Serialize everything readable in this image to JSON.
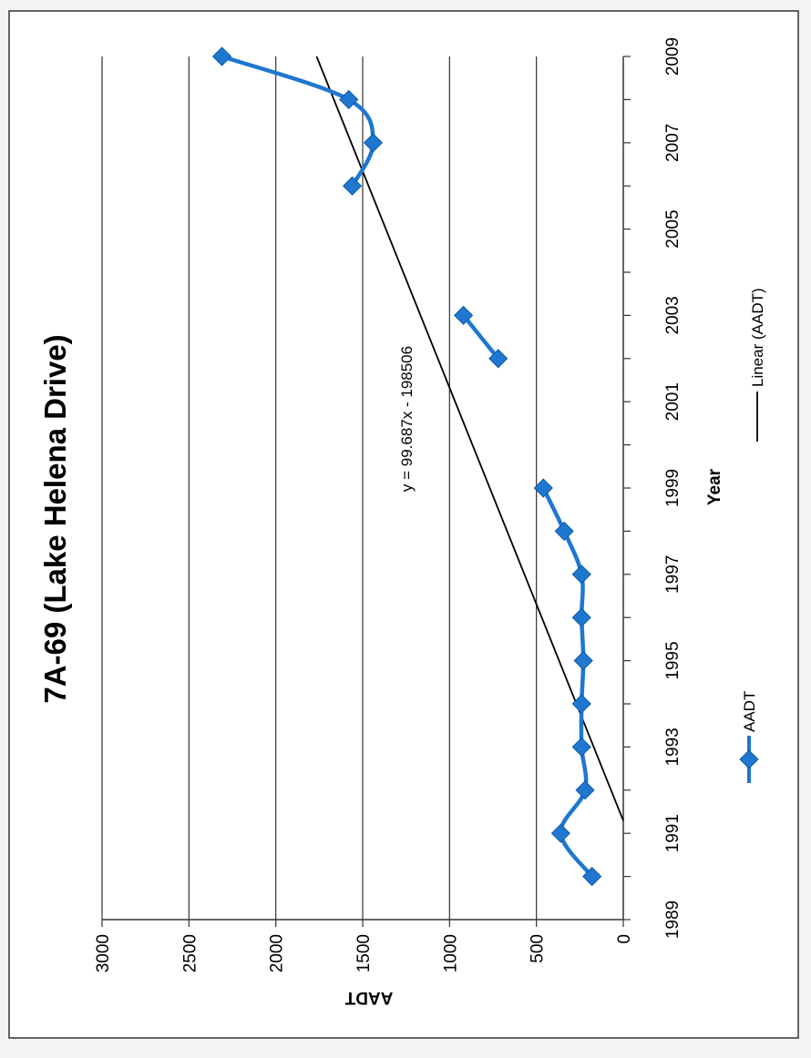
{
  "chart_data": {
    "type": "line",
    "title": "7A-69 (Lake Helena Drive)",
    "xlabel": "Year",
    "ylabel": "AADT",
    "xlim": [
      1989,
      2009
    ],
    "ylim": [
      0,
      3000
    ],
    "x_ticks": [
      "1989",
      "1991",
      "1993",
      "1995",
      "1997",
      "1999",
      "2001",
      "2003",
      "2005",
      "2007",
      "2009"
    ],
    "y_ticks": [
      "0",
      "500",
      "1000",
      "1500",
      "2000",
      "2500",
      "3000"
    ],
    "grid": true,
    "series": [
      {
        "name": "AADT",
        "color": "#1f77d0",
        "segments": [
          [
            [
              1990,
              180
            ],
            [
              1991,
              360
            ],
            [
              1992,
              220
            ],
            [
              1993,
              240
            ],
            [
              1994,
              240
            ],
            [
              1995,
              230
            ],
            [
              1996,
              240
            ],
            [
              1997,
              240
            ],
            [
              1998,
              340
            ],
            [
              1999,
              460
            ]
          ],
          [
            [
              2002,
              720
            ],
            [
              2003,
              920
            ]
          ],
          [
            [
              2006,
              1560
            ],
            [
              2007,
              1440
            ],
            [
              2008,
              1580
            ],
            [
              2009,
              2310
            ]
          ]
        ]
      }
    ],
    "trendline": {
      "name": "Linear (AADT)",
      "equation": "y = 99.687x - 198506",
      "slope": 99.687,
      "intercept": -198506,
      "color": "#000000"
    },
    "legend": {
      "position": "bottom",
      "entries": [
        "AADT",
        "Linear (AADT)"
      ]
    }
  }
}
